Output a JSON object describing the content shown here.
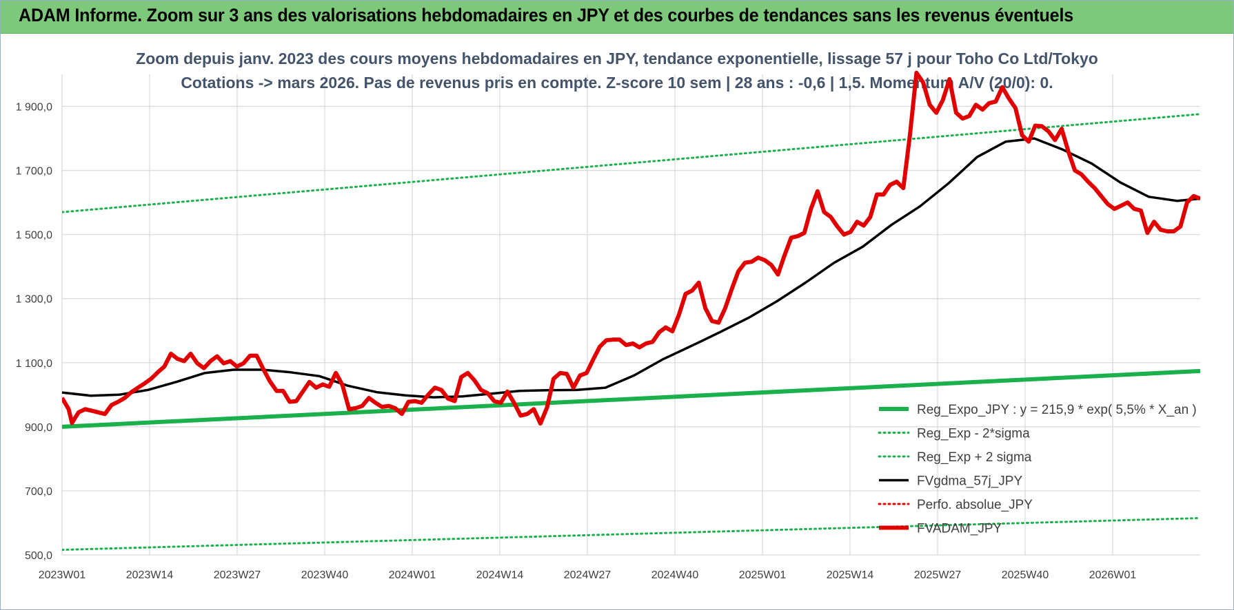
{
  "banner": {
    "title": "ADAM Informe. Zoom sur 3 ans des valorisations hebdomadaires en JPY et des courbes de tendances sans les revenus éventuels"
  },
  "colors": {
    "banner": "#7dc87a",
    "trend": "#1ab04b",
    "band": "#1ab04b",
    "gdma": "#000000",
    "perfo": "#e00000",
    "price": "#e00000",
    "grid": "#d9d9d9",
    "subtitle": "#44546a"
  },
  "chart_data": {
    "type": "line",
    "title_lines": [
      "Zoom depuis janv. 2023 des cours moyens hebdomadaires en JPY, tendance exponentielle, lissage 57 j pour Toho Co Ltd/Tokyo",
      "Cotations -> mars 2026. Pas de revenus pris en compte. Z-score 10 sem | 28 ans : -0,6 | 1,5. Momentum A/V (20/0): 0."
    ],
    "y_axis": {
      "min": 500,
      "max": 2000,
      "ticks": [
        500,
        700,
        900,
        1100,
        1300,
        1500,
        1700,
        1900
      ],
      "tick_labels": [
        "500,0",
        "700,0",
        "900,0",
        "1 100,0",
        "1 300,0",
        "1 500,0",
        "1 700,0",
        "1 900,0"
      ],
      "grid": true
    },
    "x_axis": {
      "n_weeks": 169,
      "ticks": [
        0,
        13,
        26,
        39,
        52,
        65,
        78,
        91,
        104,
        117,
        130,
        143,
        156
      ],
      "tick_labels": [
        "2023W01",
        "2023W14",
        "2023W27",
        "2023W40",
        "2024W01",
        "2024W14",
        "2024W27",
        "2024W40",
        "2025W01",
        "2025W14",
        "2025W27",
        "2025W40",
        "2026W01"
      ],
      "grid": true
    },
    "legend": {
      "position": "right",
      "entries": [
        {
          "key": "reg",
          "label": "Reg_Expo_JPY : y = 215,9 * exp( 5,5% *  X_an )",
          "color": "#1ab04b",
          "style": "solid-thick"
        },
        {
          "key": "minus",
          "label": "Reg_Exp - 2*sigma",
          "color": "#1ab04b",
          "style": "dotted"
        },
        {
          "key": "plus",
          "label": "Reg_Exp + 2 sigma",
          "color": "#1ab04b",
          "style": "dotted"
        },
        {
          "key": "gdma",
          "label": "FVgdma_57j_JPY",
          "color": "#000000",
          "style": "solid"
        },
        {
          "key": "perfo",
          "label": "Perfo. absolue_JPY",
          "color": "#e00000",
          "style": "dotted"
        },
        {
          "key": "price",
          "label": "FVADAM_JPY",
          "color": "#e00000",
          "style": "solid-thick"
        }
      ]
    },
    "series": [
      {
        "key": "reg",
        "name": "Reg_Expo_JPY : y = 215,9 * exp( 5,5% *  X_an )",
        "points": [
          [
            0,
            900
          ],
          [
            169,
            1074
          ]
        ]
      },
      {
        "key": "minus",
        "name": "Reg_Exp - 2*sigma",
        "points": [
          [
            0,
            516
          ],
          [
            169,
            615
          ]
        ]
      },
      {
        "key": "plus",
        "name": "Reg_Exp + 2 sigma",
        "points": [
          [
            0,
            1570
          ],
          [
            169,
            1876
          ]
        ]
      },
      {
        "key": "gdma",
        "name": "FVgdma_57j_JPY",
        "points": [
          [
            0,
            1007
          ],
          [
            5,
            997
          ],
          [
            10,
            1000
          ],
          [
            15,
            1015
          ],
          [
            20,
            1040
          ],
          [
            25,
            1068
          ],
          [
            30,
            1078
          ],
          [
            35,
            1078
          ],
          [
            40,
            1070
          ],
          [
            45,
            1058
          ],
          [
            50,
            1028
          ],
          [
            55,
            1008
          ],
          [
            60,
            998
          ],
          [
            65,
            992
          ],
          [
            70,
            995
          ],
          [
            75,
            1003
          ],
          [
            80,
            1012
          ],
          [
            85,
            1014
          ],
          [
            90,
            1015
          ],
          [
            95,
            1022
          ],
          [
            100,
            1060
          ],
          [
            105,
            1110
          ],
          [
            110,
            1152
          ],
          [
            115,
            1195
          ],
          [
            120,
            1240
          ],
          [
            125,
            1292
          ],
          [
            130,
            1350
          ],
          [
            135,
            1412
          ],
          [
            140,
            1462
          ],
          [
            145,
            1530
          ],
          [
            150,
            1588
          ],
          [
            155,
            1660
          ],
          [
            160,
            1742
          ],
          [
            165,
            1790
          ],
          [
            170,
            1800
          ],
          [
            175,
            1765
          ],
          [
            180,
            1722
          ],
          [
            185,
            1663
          ],
          [
            190,
            1618
          ],
          [
            195,
            1605
          ],
          [
            199,
            1612
          ]
        ]
      },
      {
        "key": "price",
        "name": "FVADAM_JPY",
        "points": [
          [
            0,
            990
          ],
          [
            2,
            955
          ],
          [
            3,
            912
          ],
          [
            5,
            945
          ],
          [
            7,
            955
          ],
          [
            9,
            950
          ],
          [
            11,
            945
          ],
          [
            13,
            940
          ],
          [
            15,
            968
          ],
          [
            17,
            978
          ],
          [
            19,
            990
          ],
          [
            21,
            1008
          ],
          [
            23,
            1022
          ],
          [
            25,
            1035
          ],
          [
            27,
            1050
          ],
          [
            29,
            1070
          ],
          [
            31,
            1088
          ],
          [
            33,
            1128
          ],
          [
            35,
            1112
          ],
          [
            37,
            1105
          ],
          [
            39,
            1128
          ],
          [
            41,
            1098
          ],
          [
            43,
            1083
          ],
          [
            45,
            1105
          ],
          [
            47,
            1120
          ],
          [
            49,
            1098
          ],
          [
            51,
            1105
          ],
          [
            53,
            1088
          ],
          [
            55,
            1098
          ],
          [
            57,
            1122
          ],
          [
            59,
            1122
          ],
          [
            61,
            1080
          ],
          [
            63,
            1042
          ],
          [
            65,
            1012
          ],
          [
            67,
            1012
          ],
          [
            69,
            978
          ],
          [
            71,
            980
          ],
          [
            73,
            1010
          ],
          [
            75,
            1040
          ],
          [
            77,
            1022
          ],
          [
            79,
            1032
          ],
          [
            81,
            1025
          ],
          [
            83,
            1068
          ],
          [
            85,
            1030
          ],
          [
            87,
            955
          ],
          [
            89,
            958
          ],
          [
            91,
            965
          ],
          [
            93,
            990
          ],
          [
            95,
            975
          ],
          [
            97,
            962
          ],
          [
            99,
            965
          ],
          [
            101,
            958
          ],
          [
            103,
            940
          ],
          [
            105,
            978
          ],
          [
            107,
            980
          ],
          [
            109,
            975
          ],
          [
            111,
            1000
          ],
          [
            113,
            1022
          ],
          [
            115,
            1015
          ],
          [
            117,
            988
          ],
          [
            119,
            980
          ],
          [
            121,
            1055
          ],
          [
            123,
            1068
          ],
          [
            125,
            1045
          ],
          [
            127,
            1015
          ],
          [
            129,
            1005
          ],
          [
            131,
            980
          ],
          [
            133,
            975
          ],
          [
            135,
            1010
          ],
          [
            137,
            975
          ],
          [
            139,
            935
          ],
          [
            141,
            940
          ],
          [
            143,
            955
          ],
          [
            145,
            910
          ],
          [
            147,
            960
          ],
          [
            149,
            1050
          ],
          [
            151,
            1068
          ],
          [
            153,
            1065
          ],
          [
            155,
            1022
          ],
          [
            157,
            1060
          ],
          [
            159,
            1068
          ],
          [
            161,
            1110
          ],
          [
            163,
            1150
          ],
          [
            165,
            1170
          ],
          [
            167,
            1172
          ],
          [
            169,
            1172
          ],
          [
            171,
            1155
          ],
          [
            173,
            1160
          ],
          [
            175,
            1148
          ],
          [
            177,
            1160
          ],
          [
            179,
            1165
          ],
          [
            181,
            1195
          ],
          [
            183,
            1210
          ],
          [
            185,
            1198
          ],
          [
            187,
            1250
          ],
          [
            189,
            1315
          ],
          [
            191,
            1325
          ],
          [
            193,
            1350
          ],
          [
            195,
            1270
          ],
          [
            197,
            1230
          ],
          [
            199,
            1225
          ],
          [
            201,
            1270
          ],
          [
            203,
            1330
          ],
          [
            205,
            1385
          ],
          [
            207,
            1412
          ],
          [
            209,
            1415
          ],
          [
            211,
            1428
          ],
          [
            213,
            1420
          ],
          [
            215,
            1405
          ],
          [
            217,
            1375
          ],
          [
            219,
            1435
          ],
          [
            221,
            1490
          ],
          [
            223,
            1495
          ],
          [
            225,
            1505
          ],
          [
            227,
            1580
          ],
          [
            229,
            1635
          ],
          [
            231,
            1570
          ],
          [
            233,
            1555
          ],
          [
            235,
            1525
          ],
          [
            237,
            1500
          ],
          [
            239,
            1508
          ],
          [
            241,
            1540
          ],
          [
            243,
            1528
          ],
          [
            245,
            1555
          ],
          [
            247,
            1625
          ],
          [
            249,
            1625
          ],
          [
            251,
            1655
          ],
          [
            253,
            1665
          ],
          [
            255,
            1645
          ],
          [
            257,
            1810
          ],
          [
            259,
            2005
          ],
          [
            261,
            1975
          ],
          [
            263,
            1905
          ],
          [
            265,
            1880
          ],
          [
            267,
            1920
          ],
          [
            269,
            1985
          ],
          [
            271,
            1880
          ],
          [
            273,
            1862
          ],
          [
            275,
            1870
          ],
          [
            277,
            1905
          ],
          [
            279,
            1890
          ],
          [
            281,
            1910
          ],
          [
            283,
            1915
          ],
          [
            285,
            1960
          ],
          [
            287,
            1925
          ],
          [
            289,
            1895
          ],
          [
            291,
            1810
          ],
          [
            293,
            1790
          ],
          [
            295,
            1840
          ],
          [
            297,
            1838
          ],
          [
            299,
            1822
          ],
          [
            301,
            1795
          ],
          [
            303,
            1830
          ],
          [
            305,
            1760
          ],
          [
            307,
            1700
          ],
          [
            309,
            1688
          ],
          [
            311,
            1665
          ],
          [
            313,
            1645
          ],
          [
            315,
            1620
          ],
          [
            317,
            1595
          ],
          [
            319,
            1580
          ],
          [
            321,
            1590
          ],
          [
            323,
            1600
          ],
          [
            325,
            1580
          ],
          [
            327,
            1575
          ],
          [
            329,
            1505
          ],
          [
            331,
            1540
          ],
          [
            333,
            1515
          ],
          [
            335,
            1510
          ],
          [
            337,
            1510
          ],
          [
            339,
            1525
          ],
          [
            341,
            1600
          ],
          [
            343,
            1620
          ],
          [
            345,
            1612
          ]
        ]
      }
    ]
  }
}
